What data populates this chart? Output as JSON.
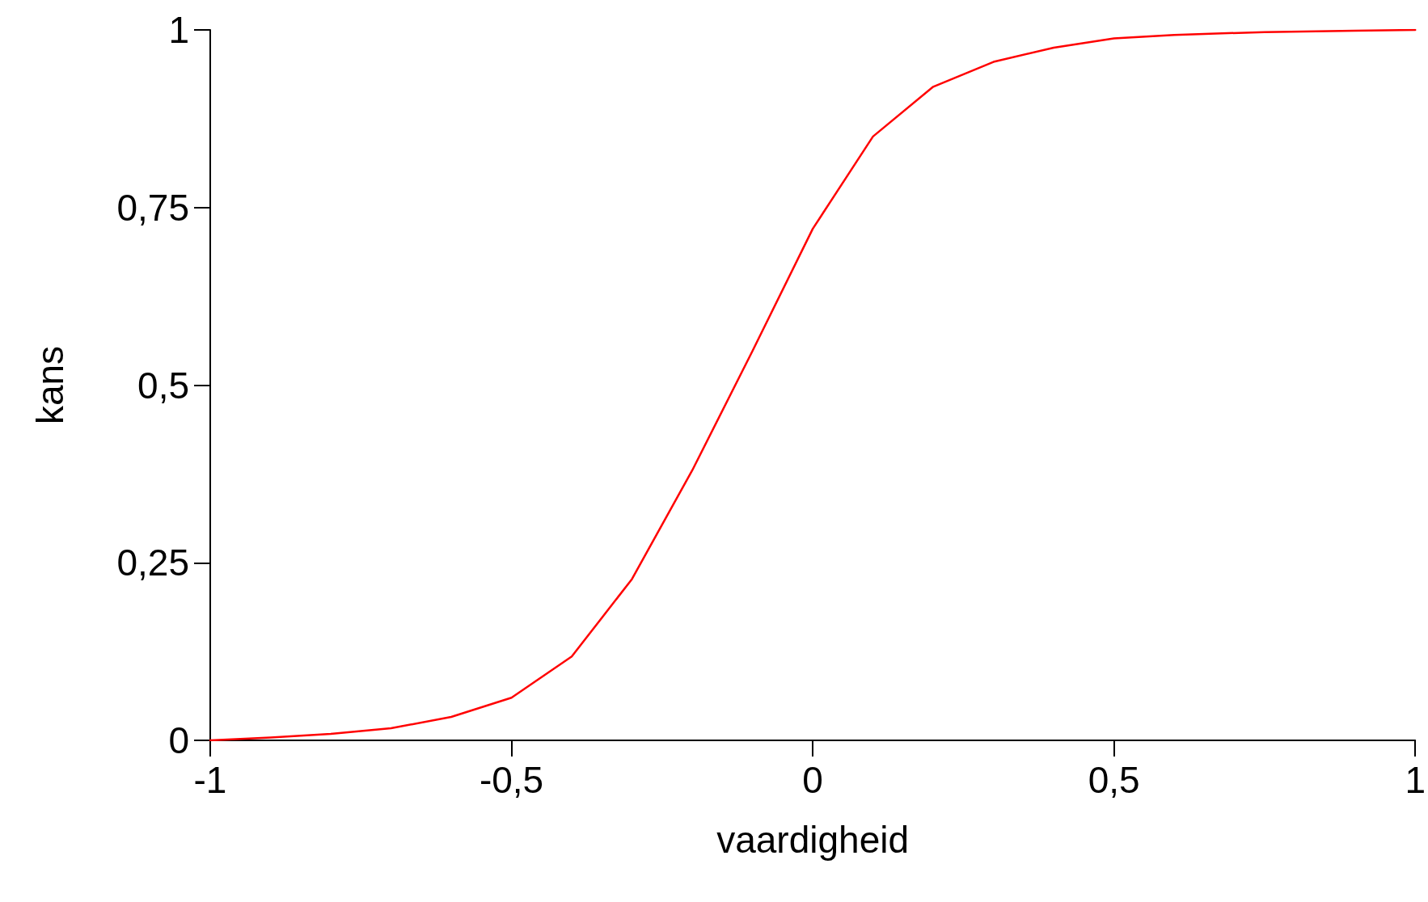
{
  "chart_data": {
    "type": "line",
    "xlabel": "vaardigheid",
    "ylabel": "kans",
    "x": [
      -1,
      -0.9,
      -0.8,
      -0.7,
      -0.6,
      -0.5,
      -0.4,
      -0.3,
      -0.2,
      -0.1,
      0,
      0.1,
      0.2,
      0.3,
      0.4,
      0.5,
      0.6,
      0.75,
      0.9,
      1
    ],
    "series": [
      {
        "color": "#ff0000",
        "values": [
          0,
          0.004,
          0.009,
          0.017,
          0.033,
          0.06,
          0.118,
          0.227,
          0.38,
          0.548,
          0.72,
          0.85,
          0.92,
          0.955,
          0.975,
          0.988,
          0.993,
          0.997,
          0.999,
          1
        ]
      }
    ],
    "xlim": [
      -1,
      1
    ],
    "xticks": [
      -1,
      {
        "value": -0.5,
        "label": "-0,5"
      },
      0,
      {
        "value": 0.5,
        "label": "0,5"
      },
      1
    ],
    "ylim": [
      0,
      1
    ],
    "yticks": [
      0,
      {
        "value": 0.25,
        "label": "0,25"
      },
      {
        "value": 0.5,
        "label": "0,5"
      },
      {
        "value": 0.75,
        "label": "0,75"
      },
      1
    ],
    "marker": "none",
    "line_style": "solid"
  }
}
